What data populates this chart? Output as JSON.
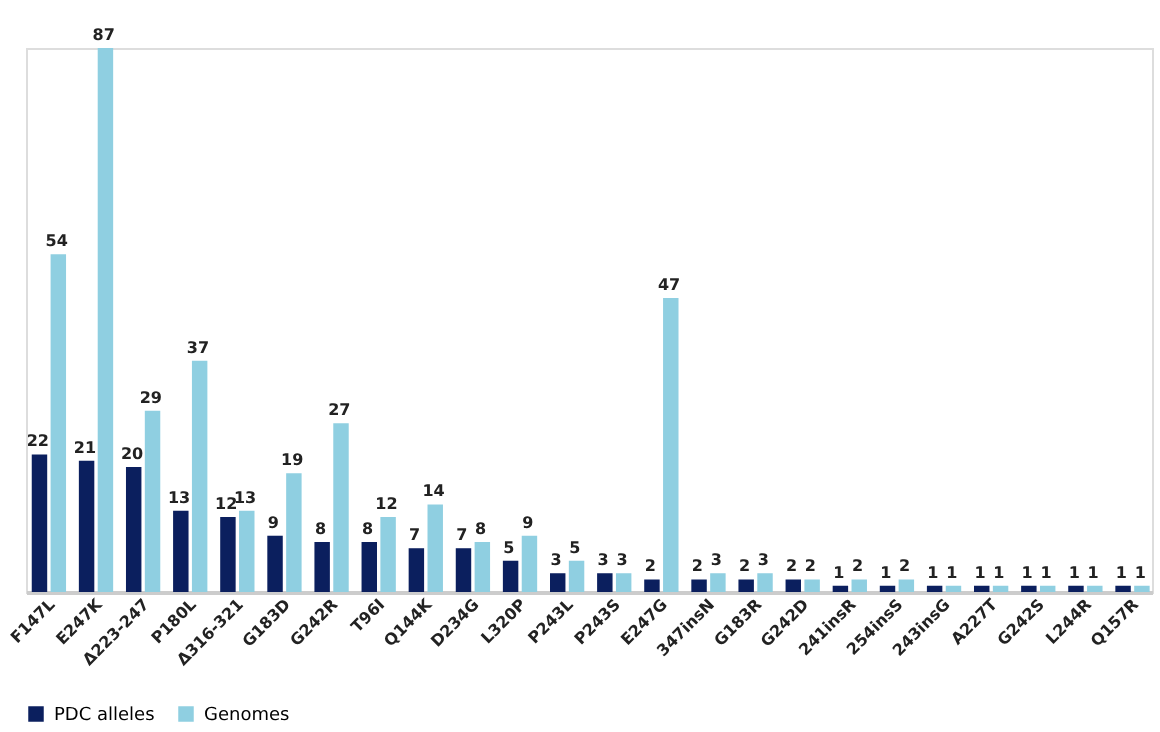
{
  "chart_data": {
    "type": "bar",
    "categories": [
      "F147L",
      "E247K",
      "Δ223-247",
      "P180L",
      "Δ316-321",
      "G183D",
      "G242R",
      "T96I",
      "Q144K",
      "D234G",
      "L320P",
      "P243L",
      "P243S",
      "E247G",
      "347insN",
      "G183R",
      "G242D",
      "241insR",
      "254insS",
      "243insG",
      "A227T",
      "G242S",
      "L244R",
      "Q157R"
    ],
    "series": [
      {
        "name": "PDC alleles",
        "color": "#0b1f5e",
        "values": [
          22,
          21,
          20,
          13,
          12,
          9,
          8,
          8,
          7,
          7,
          5,
          3,
          3,
          2,
          2,
          2,
          2,
          1,
          1,
          1,
          1,
          1,
          1,
          1
        ]
      },
      {
        "name": "Genomes",
        "color": "#8fcfe1",
        "values": [
          54,
          87,
          29,
          37,
          13,
          19,
          27,
          12,
          14,
          8,
          9,
          5,
          3,
          47,
          3,
          3,
          2,
          2,
          2,
          1,
          1,
          1,
          1,
          1
        ]
      }
    ],
    "data_labels": true,
    "legend": "bottom",
    "grid": false,
    "tick_labels": "x"
  }
}
